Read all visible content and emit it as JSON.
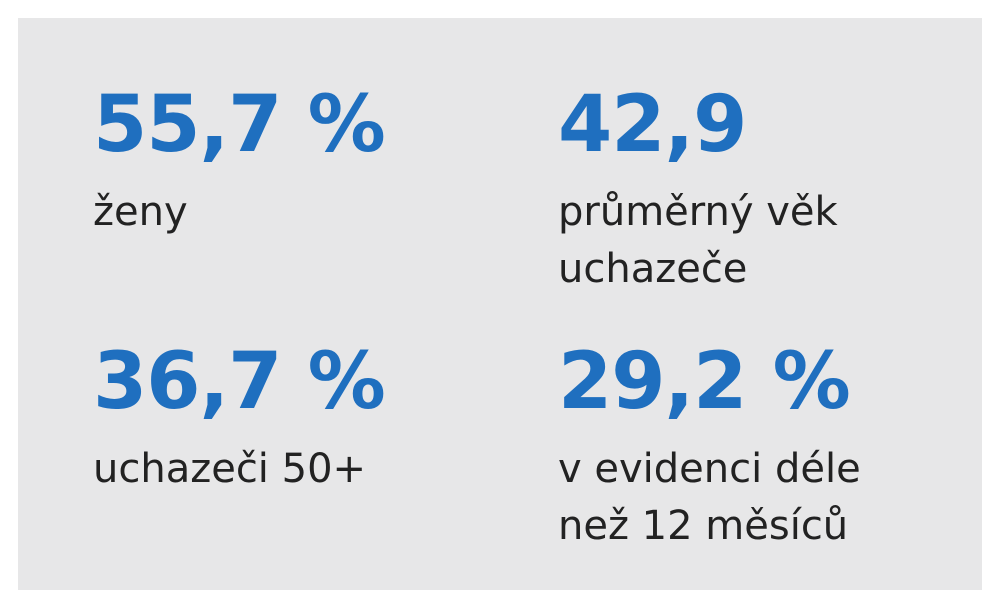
{
  "stats": [
    {
      "value": "55,7 %",
      "label": "ženy"
    },
    {
      "value": "42,9",
      "label": "průměrný věk\nuchazeče"
    },
    {
      "value": "36,7 %",
      "label": "uchazeči 50+"
    },
    {
      "value": "29,2 %",
      "label": "v evidenci déle\nnež 12 měsíců"
    }
  ],
  "colors": {
    "value": "#1f6fbf",
    "label": "#222222",
    "panel": "#e7e7e8"
  }
}
